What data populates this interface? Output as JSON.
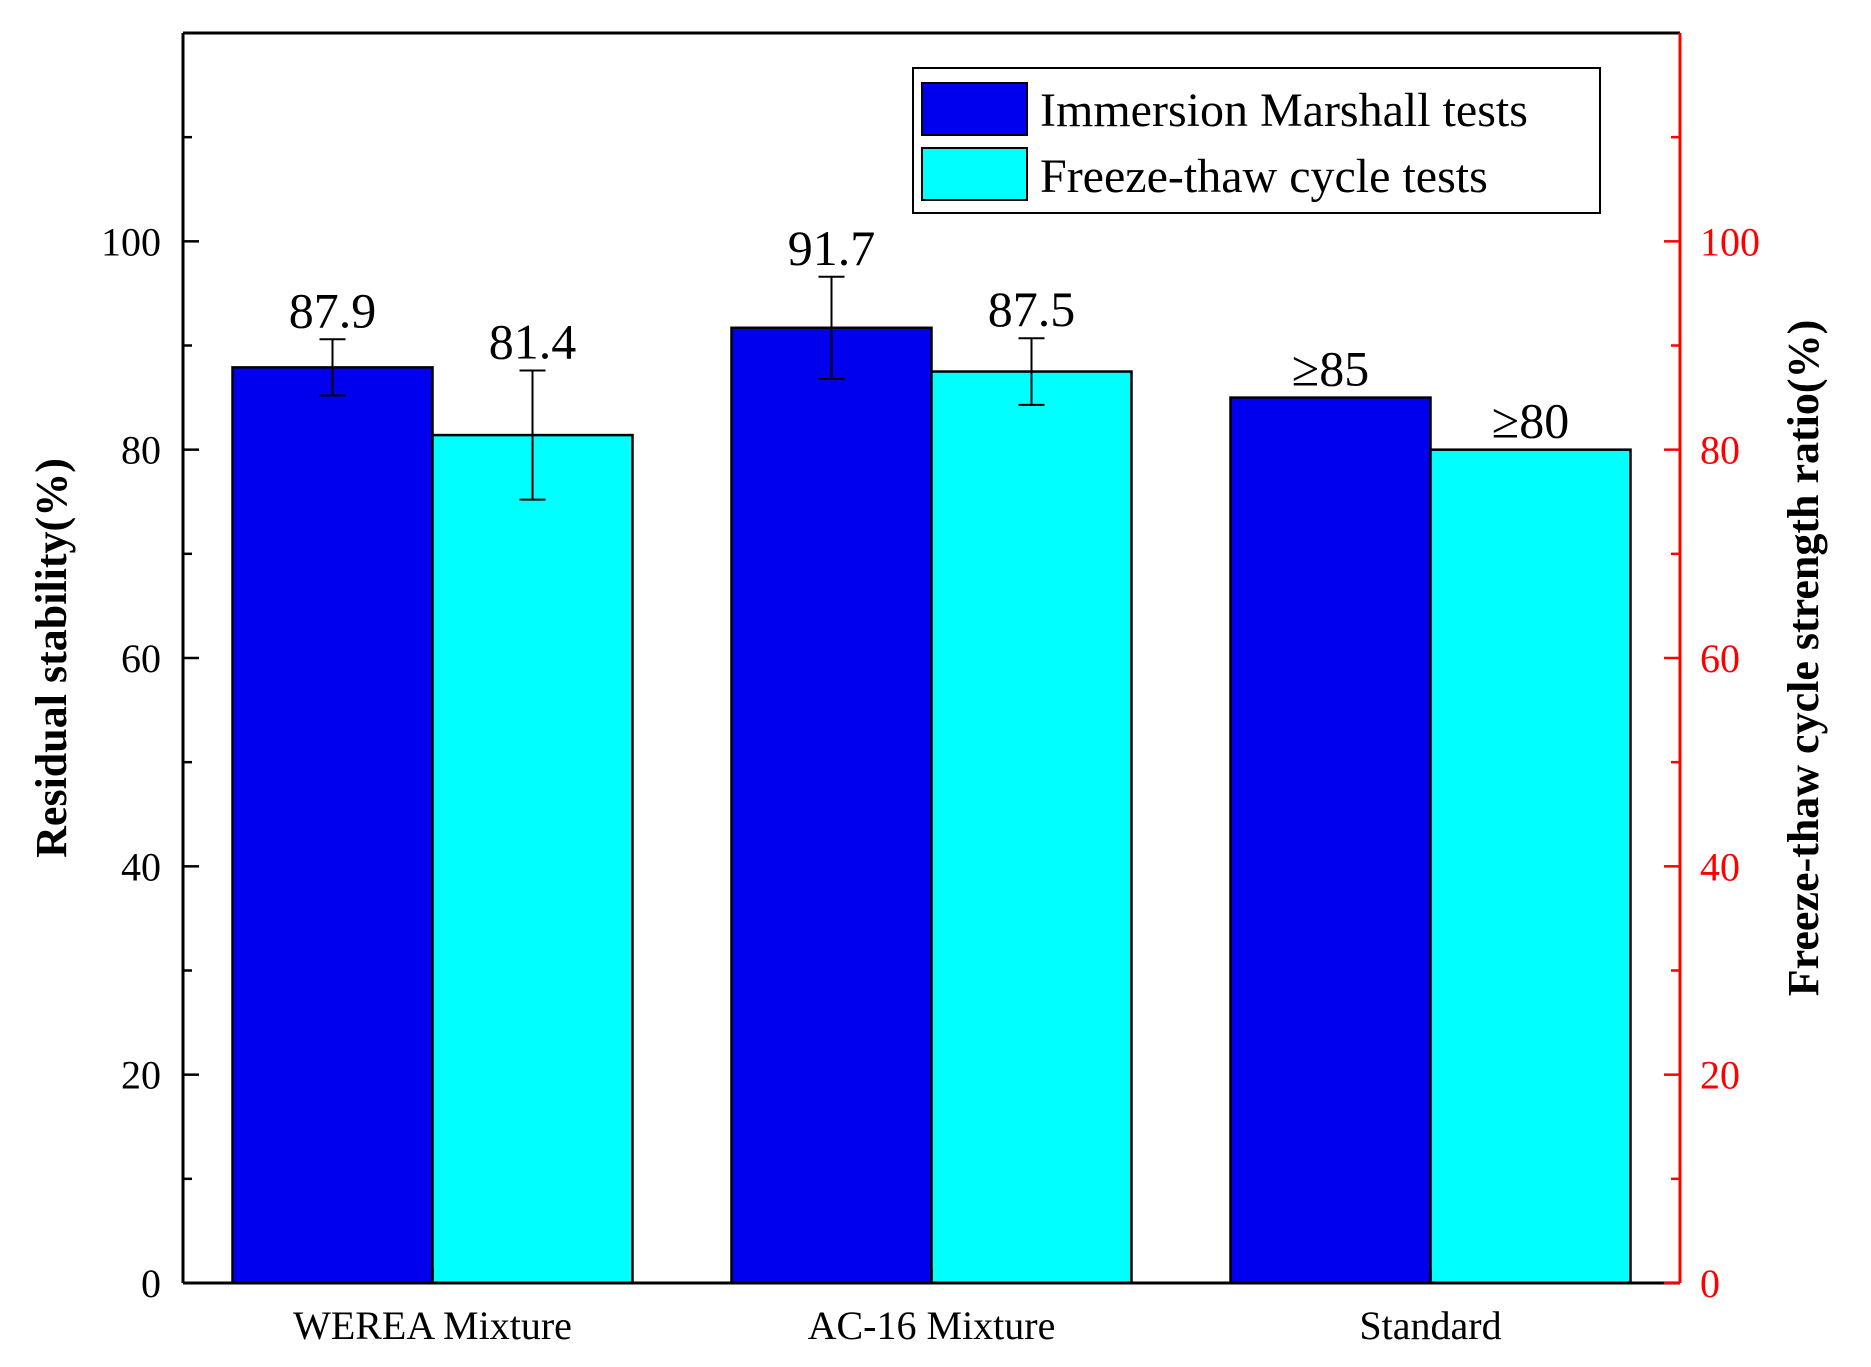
{
  "chart_data": {
    "type": "bar",
    "categories": [
      "WEREA Mixture",
      "AC-16 Mixture",
      "Standard"
    ],
    "series": [
      {
        "name": "Immersion Marshall tests",
        "color": "#0000ee",
        "values": [
          87.9,
          91.7,
          85
        ],
        "errors": [
          2.7,
          4.9,
          null
        ],
        "labels": [
          "87.9",
          "91.7",
          "≥85"
        ]
      },
      {
        "name": "Freeze-thaw cycle tests",
        "color": "#00ffff",
        "values": [
          81.4,
          87.5,
          80
        ],
        "errors": [
          6.2,
          3.2,
          null
        ],
        "labels": [
          "81.4",
          "87.5",
          "≥80"
        ]
      }
    ],
    "ylabel": "Residual stability(%)",
    "y2label": "Freeze-thaw cycle strength ratio(%)",
    "ylim": [
      0,
      120
    ],
    "y2lim": [
      0,
      120
    ],
    "yticks": [
      0,
      20,
      40,
      60,
      80,
      100
    ],
    "y2ticks": [
      0,
      20,
      40,
      60,
      80,
      100
    ],
    "y2color": "#ff0000",
    "legend_position": "top-right",
    "grid": false
  }
}
